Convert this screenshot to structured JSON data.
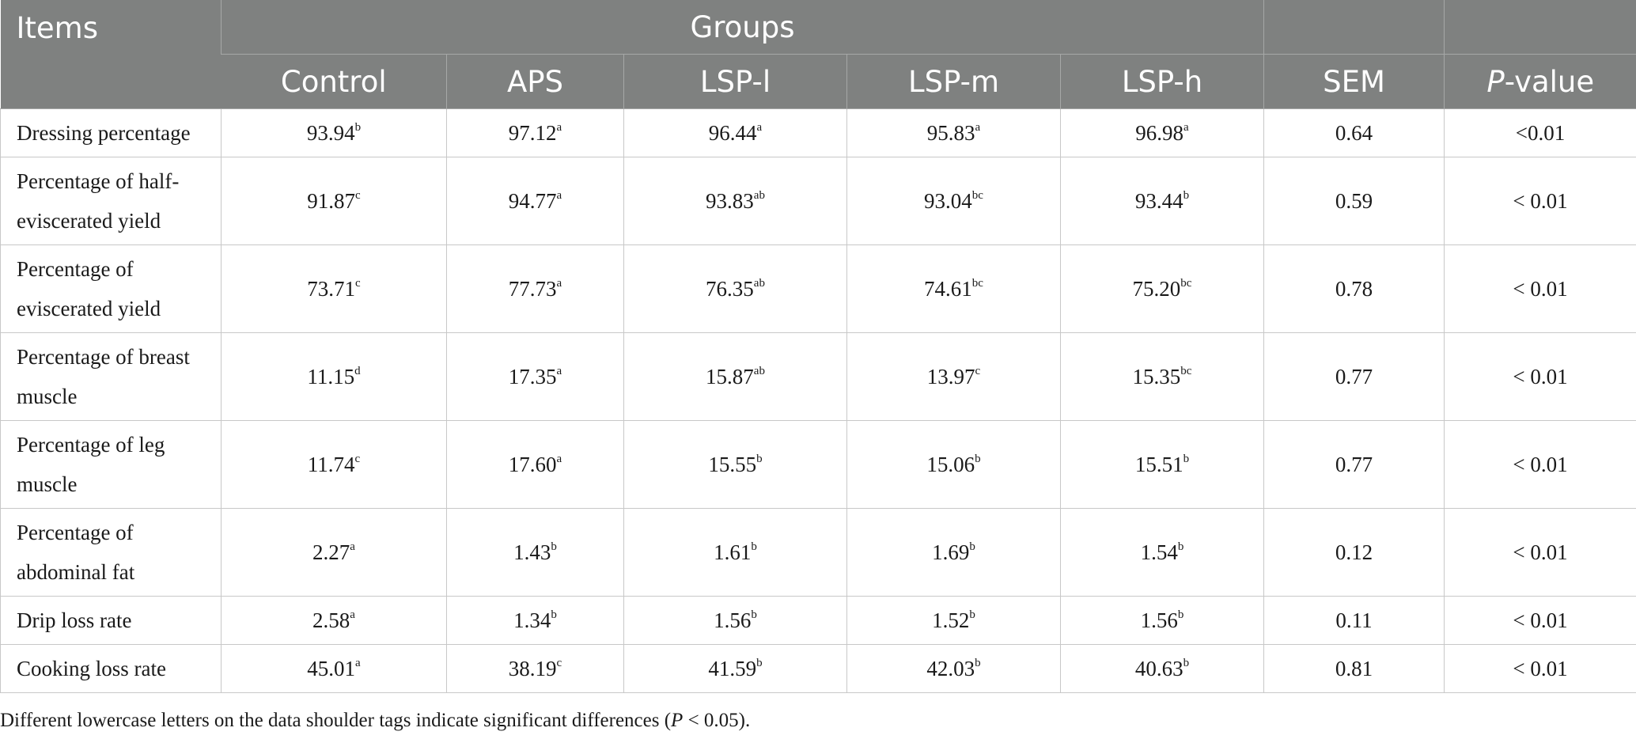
{
  "header": {
    "items": "Items",
    "groups": "Groups",
    "columns": [
      "Control",
      "APS",
      "LSP-l",
      "LSP-m",
      "LSP-h",
      "SEM"
    ],
    "pvalue_italic": "P",
    "pvalue_rest": "-value"
  },
  "rows": [
    {
      "item": "Dressing percentage",
      "cells": [
        [
          "93.94",
          "b"
        ],
        [
          "97.12",
          "a"
        ],
        [
          "96.44",
          "a"
        ],
        [
          "95.83",
          "a"
        ],
        [
          "96.98",
          "a"
        ]
      ],
      "sem": "0.64",
      "p": "<0.01"
    },
    {
      "item": "Percentage of half-eviscerated yield",
      "cells": [
        [
          "91.87",
          "c"
        ],
        [
          "94.77",
          "a"
        ],
        [
          "93.83",
          "ab"
        ],
        [
          "93.04",
          "bc"
        ],
        [
          "93.44",
          "b"
        ]
      ],
      "sem": "0.59",
      "p": "< 0.01"
    },
    {
      "item": "Percentage of eviscerated yield",
      "cells": [
        [
          "73.71",
          "c"
        ],
        [
          "77.73",
          "a"
        ],
        [
          "76.35",
          "ab"
        ],
        [
          "74.61",
          "bc"
        ],
        [
          "75.20",
          "bc"
        ]
      ],
      "sem": "0.78",
      "p": "< 0.01"
    },
    {
      "item": "Percentage of breast muscle",
      "cells": [
        [
          "11.15",
          "d"
        ],
        [
          "17.35",
          "a"
        ],
        [
          "15.87",
          "ab"
        ],
        [
          "13.97",
          "c"
        ],
        [
          "15.35",
          "bc"
        ]
      ],
      "sem": "0.77",
      "p": "< 0.01"
    },
    {
      "item": "Percentage of leg muscle",
      "cells": [
        [
          "11.74",
          "c"
        ],
        [
          "17.60",
          "a"
        ],
        [
          "15.55",
          "b"
        ],
        [
          "15.06",
          "b"
        ],
        [
          "15.51",
          "b"
        ]
      ],
      "sem": "0.77",
      "p": "< 0.01"
    },
    {
      "item": "Percentage of abdominal fat",
      "cells": [
        [
          "2.27",
          "a"
        ],
        [
          "1.43",
          "b"
        ],
        [
          "1.61",
          "b"
        ],
        [
          "1.69",
          "b"
        ],
        [
          "1.54",
          "b"
        ]
      ],
      "sem": "0.12",
      "p": "< 0.01"
    },
    {
      "item": "Drip loss rate",
      "cells": [
        [
          "2.58",
          "a"
        ],
        [
          "1.34",
          "b"
        ],
        [
          "1.56",
          "b"
        ],
        [
          "1.52",
          "b"
        ],
        [
          "1.56",
          "b"
        ]
      ],
      "sem": "0.11",
      "p": "< 0.01"
    },
    {
      "item": "Cooking loss rate",
      "cells": [
        [
          "45.01",
          "a"
        ],
        [
          "38.19",
          "c"
        ],
        [
          "41.59",
          "b"
        ],
        [
          "42.03",
          "b"
        ],
        [
          "40.63",
          "b"
        ]
      ],
      "sem": "0.81",
      "p": "< 0.01"
    }
  ],
  "note": {
    "before": "Different lowercase letters on the data shoulder tags indicate significant differences (",
    "p": "P",
    "after": " < 0.05)."
  }
}
